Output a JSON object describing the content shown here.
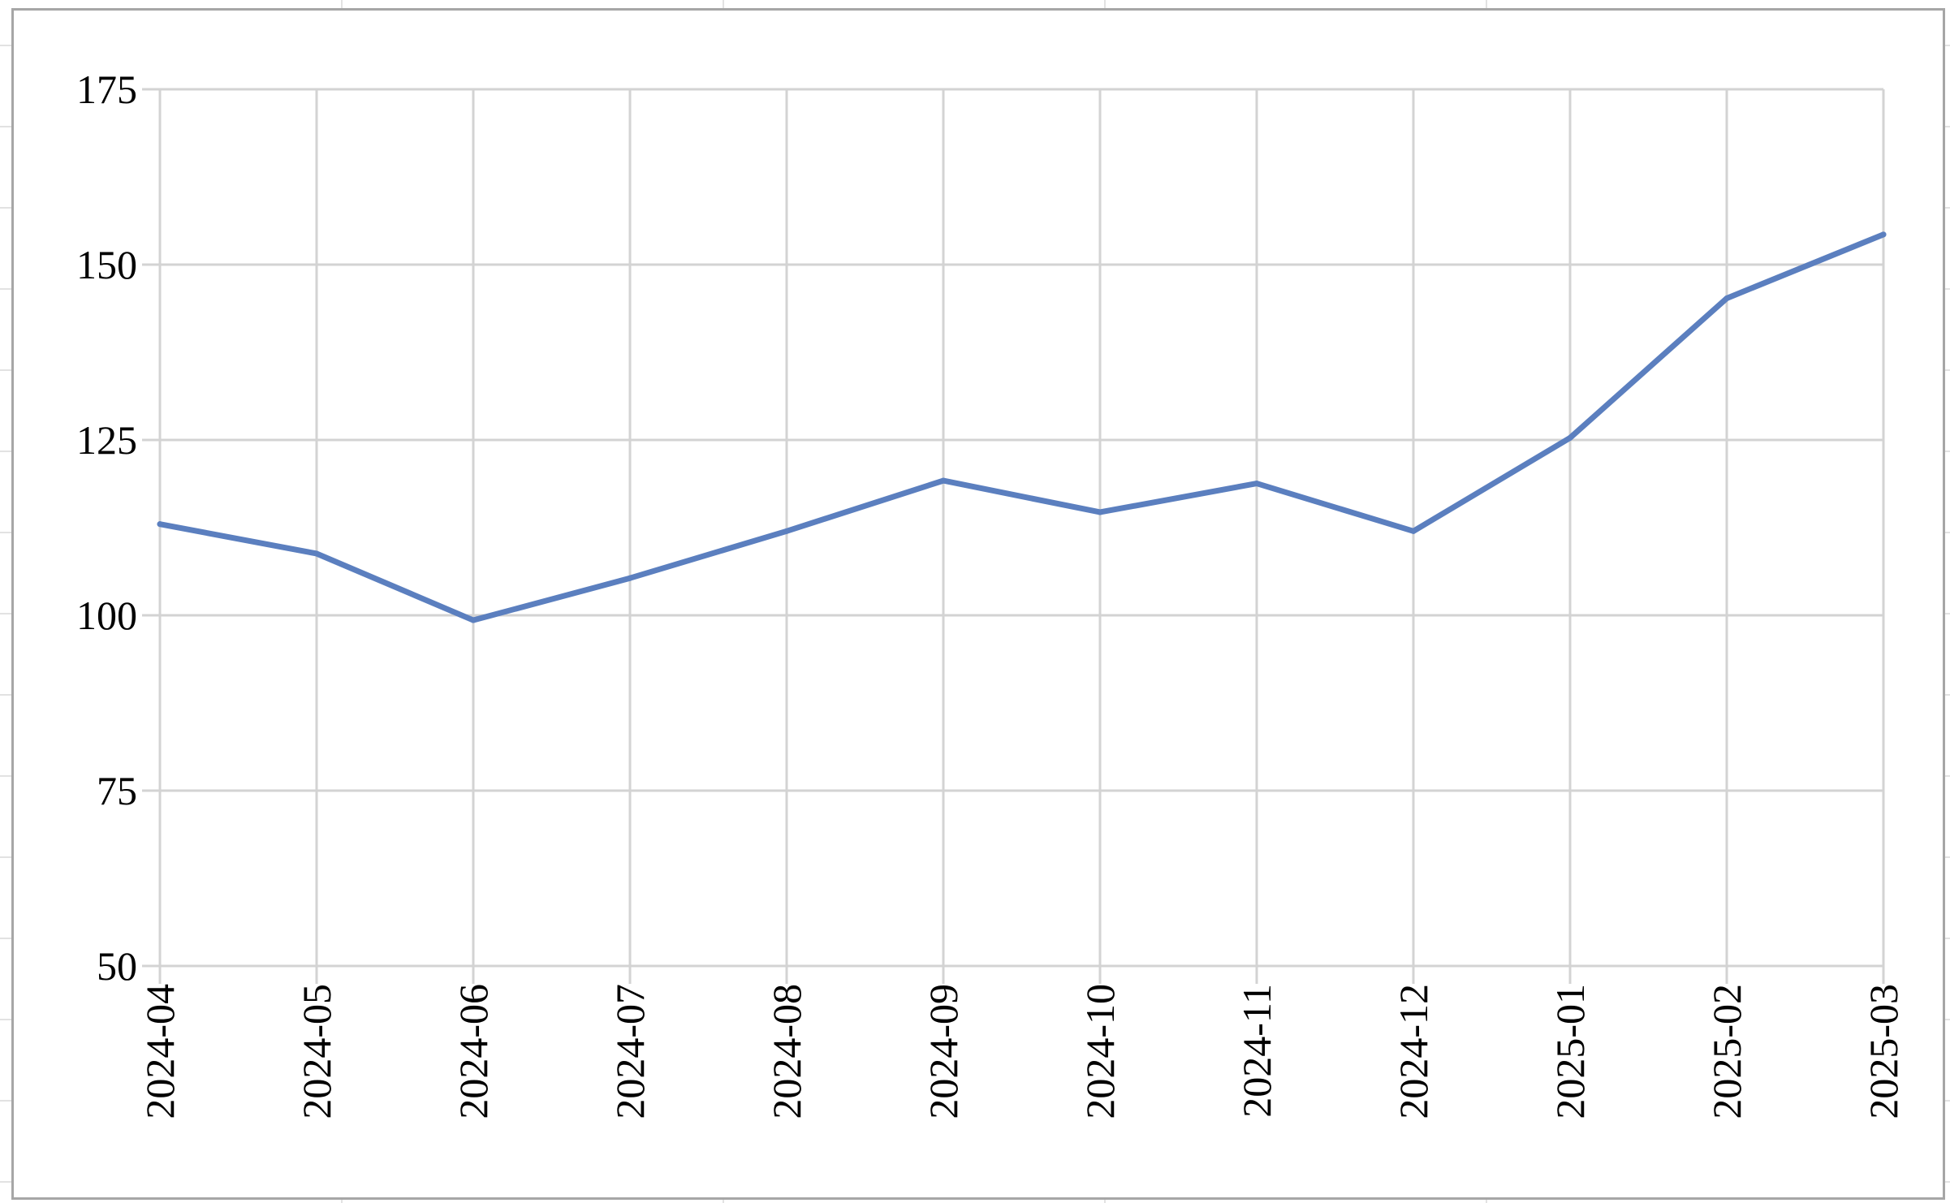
{
  "chart_data": {
    "type": "line",
    "title": "",
    "xlabel": "",
    "ylabel": "",
    "categories": [
      "2024-04",
      "2024-05",
      "2024-06",
      "2024-07",
      "2024-08",
      "2024-09",
      "2024-10",
      "2024-11",
      "2024-12",
      "2025-01",
      "2025-02",
      "2025-03"
    ],
    "series": [
      {
        "values": [
          113,
          108.8,
          99.3,
          105.3,
          112,
          119.2,
          114.7,
          118.8,
          112,
          125.3,
          145.2,
          154.3
        ],
        "color": "#5b7fbf"
      }
    ],
    "ylim": [
      50,
      175
    ],
    "yticks": [
      50,
      75,
      100,
      125,
      150,
      175
    ],
    "ytick_labels": [
      "50",
      "75",
      "100",
      "125",
      "150",
      "175"
    ],
    "grid": true,
    "legend": "none",
    "colors": {
      "gridline": "#d3d3d3",
      "frame": "#a6a6a6",
      "sheet_grid": "#e2e2e2"
    }
  }
}
